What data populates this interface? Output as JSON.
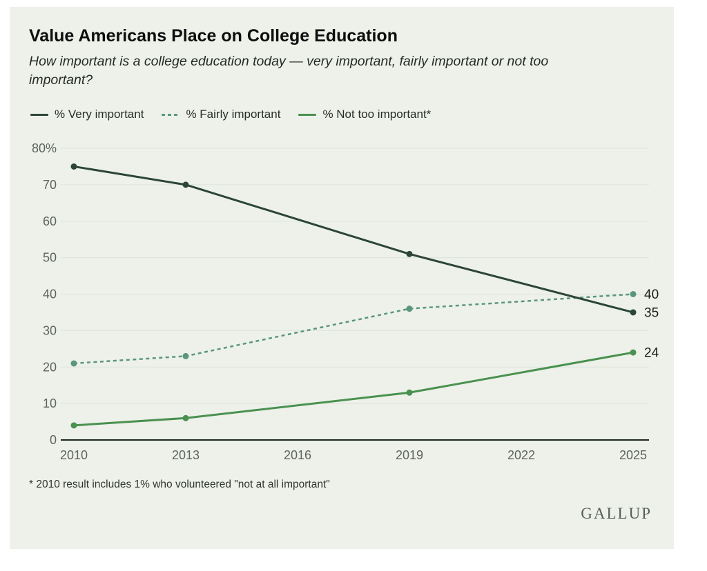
{
  "page": {
    "title": "Value Americans Place on College Education",
    "subtitle_lines": [
      "How important is a college education today — very important, fairly important or not too",
      "important?"
    ],
    "footnote": "* 2010 result includes 1% who volunteered \"not at all important\"",
    "logo": "GALLUP"
  },
  "colors": {
    "card_bg": "#edf1ea",
    "very_important": "#2c4539",
    "fairly_important": "#5a967e",
    "not_too_important": "#4a9150",
    "grid": "#dde4da",
    "axis_line": "#1c2620",
    "tick_text": "#5e645e",
    "value_label": "#1a1a1a"
  },
  "legend": [
    {
      "label": "% Very important",
      "series": "very_important",
      "style": "solid"
    },
    {
      "label": "% Fairly important",
      "series": "fairly_important",
      "style": "dashed"
    },
    {
      "label": "% Not too important*",
      "series": "not_too_important",
      "style": "solid"
    }
  ],
  "chart_data": {
    "type": "line",
    "title": "Value Americans Place on College Education",
    "x": [
      2010,
      2013,
      2019,
      2025
    ],
    "x_axis_ticks": [
      "2010",
      "2013",
      "2016",
      "2019",
      "2022",
      "2025"
    ],
    "x_range": [
      2010,
      2025
    ],
    "y_ticks": [
      0,
      10,
      20,
      30,
      40,
      50,
      60,
      70,
      80
    ],
    "y_tick_labels": [
      "0",
      "10",
      "20",
      "30",
      "40",
      "50",
      "60",
      "70",
      "80%"
    ],
    "ylim": [
      0,
      80
    ],
    "grid": true,
    "legend_position": "top",
    "series": [
      {
        "name": "% Fairly important",
        "values": [
          21,
          23,
          36,
          40
        ],
        "color_key": "fairly_important",
        "dash": true,
        "end_label": "40"
      },
      {
        "name": "% Not too important*",
        "values": [
          4,
          6,
          13,
          24
        ],
        "color_key": "not_too_important",
        "dash": false,
        "end_label": "24"
      },
      {
        "name": "% Very important",
        "values": [
          75,
          70,
          51,
          35
        ],
        "color_key": "very_important",
        "dash": false,
        "end_label": "35"
      }
    ]
  }
}
